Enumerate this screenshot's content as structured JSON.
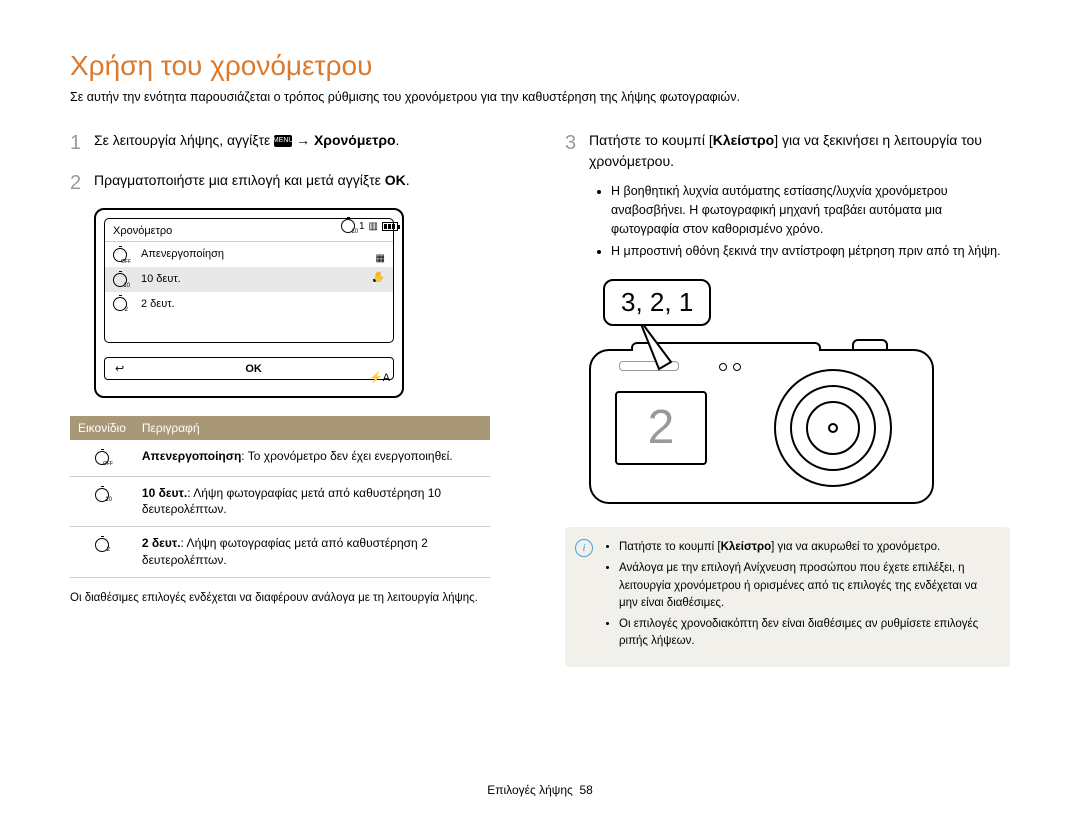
{
  "title": "Χρήση του χρονόμετρου",
  "subtitle": "Σε αυτήν την ενότητα παρουσιάζεται ο τρόπος ρύθμισης του χρονόμετρου για την καθυστέρηση της λήψης φωτογραφιών.",
  "colors": {
    "title": "#d97a2f",
    "table_header_bg": "#a89877",
    "table_header_text": "#ffffff",
    "step_number": "#999999",
    "info_box_bg": "#f2f0eb",
    "info_icon": "#4aa0d8",
    "text": "#000000"
  },
  "left": {
    "step1": {
      "num": "1",
      "text_pre": "Σε λειτουργία λήψης, αγγίξτε ",
      "menu_badge": "MENU",
      "text_post": " → ",
      "bold": "Χρονόμετρο",
      "period": "."
    },
    "step2": {
      "num": "2",
      "text": "Πραγματοποιήστε μια επιλογή και μετά αγγίξτε ",
      "ok": "OK",
      "period": "."
    },
    "screen": {
      "title": "Χρονόμετρο",
      "top_indicator": "1",
      "rows": [
        {
          "label": "Απενεργοποίηση",
          "selected": false,
          "icon_variant": "off"
        },
        {
          "label": "10 δευτ.",
          "selected": true,
          "icon_variant": "t10"
        },
        {
          "label": "2 δευτ.",
          "selected": false,
          "icon_variant": "t2"
        }
      ],
      "back": "↩",
      "ok": "OK",
      "flash": "⚡A"
    },
    "table": {
      "columns": [
        "Εικονίδιο",
        "Περιγραφή"
      ],
      "rows": [
        {
          "icon_variant": "off",
          "bold": "Απενεργοποίηση",
          "rest": ": Το χρονόμετρο δεν έχει ενεργοποιηθεί."
        },
        {
          "icon_variant": "t10",
          "bold": "10 δευτ.",
          "rest": ": Λήψη φωτογραφίας μετά από καθυστέρηση 10 δευτερολέπτων."
        },
        {
          "icon_variant": "t2",
          "bold": "2 δευτ.",
          "rest": ": Λήψη φωτογραφίας μετά από καθυστέρηση 2 δευτερολέπτων."
        }
      ]
    },
    "note": "Οι διαθέσιμες επιλογές ενδέχεται να διαφέρουν ανάλογα με τη λειτουργία λήψης."
  },
  "right": {
    "step3": {
      "num": "3",
      "pre": "Πατήστε το κουμπί [",
      "bold": "Κλείστρο",
      "post": "] για να ξεκινήσει η λειτουργία του χρονόμετρου."
    },
    "bullets": [
      "Η βοηθητική λυχνία αυτόματης εστίασης/λυχνία χρονόμετρου αναβοσβήνει. Η φωτογραφική μηχανή τραβάει αυτόματα μια φωτογραφία στον καθορισμένο χρόνο.",
      "Η μπροστινή οθόνη ξεκινά την αντίστροφη μέτρηση πριν από τη λήψη."
    ],
    "bubble": "3, 2, 1",
    "front_screen": "2",
    "info": {
      "items": [
        {
          "pre": "Πατήστε το κουμπί [",
          "bold": "Κλείστρο",
          "post": "] για να ακυρωθεί το χρονόμετρο."
        },
        {
          "pre": "Ανάλογα με την επιλογή Ανίχνευση προσώπου που έχετε επιλέξει, η λειτουργία χρονόμετρου ή ορισμένες από τις επιλογές της ενδέχεται να μην είναι διαθέσιμες.",
          "bold": "",
          "post": ""
        },
        {
          "pre": "Οι επιλογές χρονοδιακόπτη δεν είναι διαθέσιμες αν ρυθμίσετε επιλογές ριπής λήψεων.",
          "bold": "",
          "post": ""
        }
      ]
    }
  },
  "footer": {
    "section": "Επιλογές λήψης",
    "page": "58"
  }
}
